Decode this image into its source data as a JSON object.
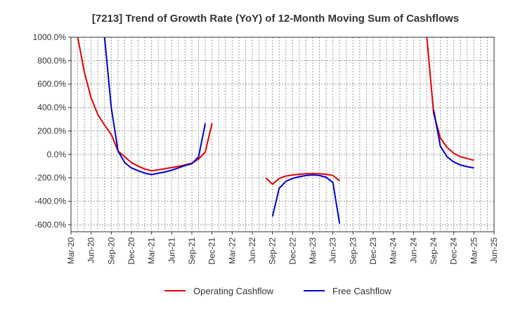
{
  "chart_data": {
    "type": "line",
    "title": "[7213]  Trend of Growth Rate (YoY) of 12-Month Moving Sum of Cashflows",
    "xlabel": "",
    "ylabel": "",
    "ylim": [
      -660,
      1000
    ],
    "yticks": [
      1000,
      800,
      600,
      400,
      200,
      0,
      -200,
      -400,
      -600
    ],
    "ytick_labels": [
      "1000.0%",
      "800.0%",
      "600.0%",
      "400.0%",
      "200.0%",
      "0.0%",
      "-200.0%",
      "-400.0%",
      "-600.0%"
    ],
    "xlim": [
      "2020-03",
      "2025-06"
    ],
    "xtick_labels": [
      "Mar-20",
      "Jun-20",
      "Sep-20",
      "Dec-20",
      "Mar-21",
      "Jun-21",
      "Sep-21",
      "Dec-21",
      "Mar-22",
      "Jun-22",
      "Sep-22",
      "Dec-22",
      "Mar-23",
      "Jun-23",
      "Sep-23",
      "Dec-23",
      "Mar-24",
      "Jun-24",
      "Sep-24",
      "Dec-24",
      "Mar-25",
      "Jun-25"
    ],
    "grid": true,
    "legend_position": "bottom",
    "series": [
      {
        "name": "Operating Cashflow",
        "color": "#e00000",
        "points": [
          [
            "2020-04",
            1000
          ],
          [
            "2020-05",
            700
          ],
          [
            "2020-06",
            480
          ],
          [
            "2020-07",
            340
          ],
          [
            "2020-08",
            250
          ],
          [
            "2020-09",
            170
          ],
          [
            "2020-10",
            30
          ],
          [
            "2020-11",
            -20
          ],
          [
            "2020-12",
            -70
          ],
          [
            "2021-01",
            -100
          ],
          [
            "2021-02",
            -125
          ],
          [
            "2021-03",
            -140
          ],
          [
            "2021-04",
            -132
          ],
          [
            "2021-05",
            -122
          ],
          [
            "2021-06",
            -112
          ],
          [
            "2021-07",
            -102
          ],
          [
            "2021-08",
            -90
          ],
          [
            "2021-09",
            -75
          ],
          [
            "2021-10",
            -40
          ],
          [
            "2021-11",
            20
          ],
          [
            "2021-12",
            265
          ],
          null,
          [
            "2022-08",
            -200
          ],
          [
            "2022-09",
            -255
          ],
          [
            "2022-10",
            -205
          ],
          [
            "2022-11",
            -185
          ],
          [
            "2022-12",
            -175
          ],
          [
            "2023-01",
            -170
          ],
          [
            "2023-02",
            -165
          ],
          [
            "2023-03",
            -163
          ],
          [
            "2023-04",
            -165
          ],
          [
            "2023-05",
            -170
          ],
          [
            "2023-06",
            -180
          ],
          [
            "2023-07",
            -225
          ],
          null,
          [
            "2024-08",
            1000
          ],
          [
            "2024-09",
            350
          ],
          [
            "2024-10",
            140
          ],
          [
            "2024-11",
            60
          ],
          [
            "2024-12",
            10
          ],
          [
            "2025-01",
            -20
          ],
          [
            "2025-02",
            -35
          ],
          [
            "2025-03",
            -50
          ]
        ]
      },
      {
        "name": "Free Cashflow",
        "color": "#0000cc",
        "points": [
          [
            "2020-08",
            1000
          ],
          [
            "2020-09",
            400
          ],
          [
            "2020-10",
            30
          ],
          [
            "2020-11",
            -70
          ],
          [
            "2020-12",
            -115
          ],
          [
            "2021-01",
            -140
          ],
          [
            "2021-02",
            -160
          ],
          [
            "2021-03",
            -172
          ],
          [
            "2021-04",
            -160
          ],
          [
            "2021-05",
            -150
          ],
          [
            "2021-06",
            -135
          ],
          [
            "2021-07",
            -115
          ],
          [
            "2021-08",
            -95
          ],
          [
            "2021-09",
            -80
          ],
          [
            "2021-10",
            -20
          ],
          [
            "2021-11",
            265
          ],
          null,
          [
            "2022-09",
            -530
          ],
          [
            "2022-10",
            -290
          ],
          [
            "2022-11",
            -230
          ],
          [
            "2022-12",
            -205
          ],
          [
            "2023-01",
            -190
          ],
          [
            "2023-02",
            -180
          ],
          [
            "2023-03",
            -175
          ],
          [
            "2023-04",
            -180
          ],
          [
            "2023-05",
            -195
          ],
          [
            "2023-06",
            -240
          ],
          [
            "2023-07",
            -590
          ],
          null,
          [
            "2024-09",
            380
          ],
          [
            "2024-10",
            70
          ],
          [
            "2024-11",
            -20
          ],
          [
            "2024-12",
            -65
          ],
          [
            "2025-01",
            -90
          ],
          [
            "2025-02",
            -105
          ],
          [
            "2025-03",
            -115
          ]
        ]
      }
    ]
  }
}
